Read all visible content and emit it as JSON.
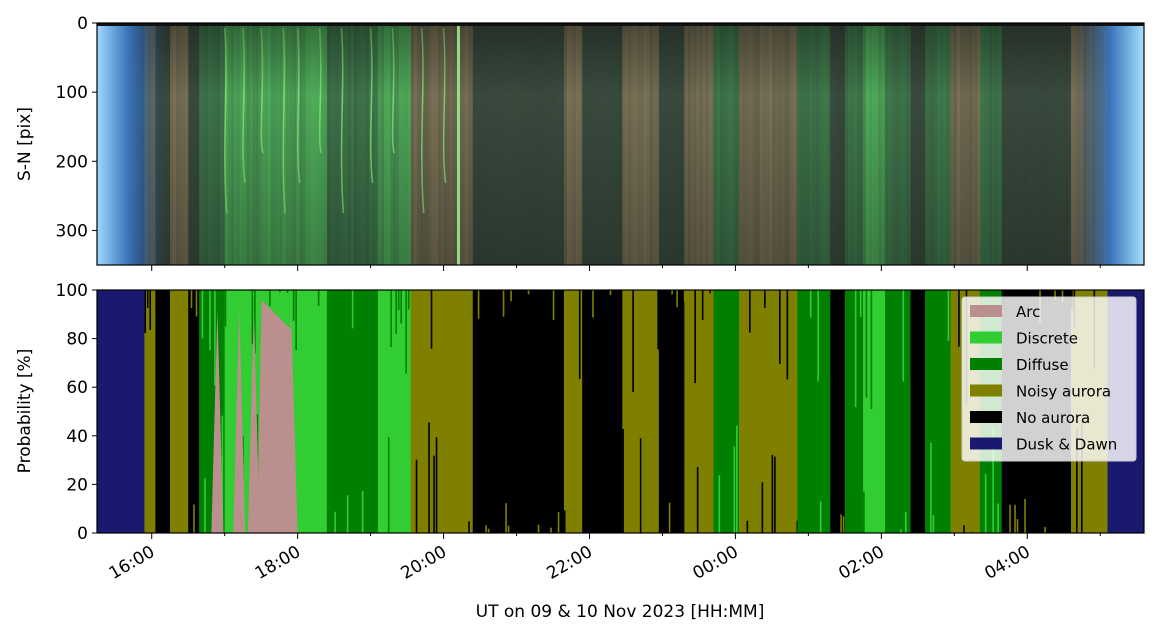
{
  "chart_data": [
    {
      "type": "heatmap",
      "title": "",
      "xlabel": "",
      "ylabel": "S-N [pix]",
      "ylim": [
        350,
        0
      ],
      "yticks": [
        "0",
        "100",
        "200",
        "300"
      ],
      "description_color_ramp": [
        "#2b4a8f",
        "#3d6b3f",
        "#6fd46a",
        "#8f7a52"
      ]
    },
    {
      "type": "area",
      "xlabel": "UT on 09 & 10 Nov 2023 [HH:MM]",
      "ylabel": "Probability [%]",
      "ylim": [
        0,
        100
      ],
      "yticks": [
        "0",
        "20",
        "40",
        "60",
        "80",
        "100"
      ],
      "xticks": [
        "16:00",
        "18:00",
        "20:00",
        "22:00",
        "00:00",
        "02:00",
        "04:00"
      ],
      "xrange_hours": [
        15.25,
        29.6
      ],
      "legend_position": "upper-right",
      "series": [
        {
          "name": "Arc",
          "color": "#bc8f8f"
        },
        {
          "name": "Discrete",
          "color": "#32cd32"
        },
        {
          "name": "Diffuse",
          "color": "#008000"
        },
        {
          "name": "Noisy aurora",
          "color": "#808000"
        },
        {
          "name": "No aurora",
          "color": "#000000"
        },
        {
          "name": "Dusk & Dawn",
          "color": "#191970"
        }
      ],
      "segments": [
        {
          "start": 15.25,
          "end": 15.9,
          "class": "Dusk & Dawn"
        },
        {
          "start": 15.9,
          "end": 16.05,
          "class": "Noisy aurora"
        },
        {
          "start": 16.05,
          "end": 16.25,
          "class": "No aurora"
        },
        {
          "start": 16.25,
          "end": 16.5,
          "class": "Noisy aurora"
        },
        {
          "start": 16.5,
          "end": 16.65,
          "class": "No aurora"
        },
        {
          "start": 16.65,
          "end": 17.0,
          "class": "Diffuse"
        },
        {
          "start": 17.0,
          "end": 17.3,
          "class": "Discrete"
        },
        {
          "start": 17.3,
          "end": 17.9,
          "class": "Discrete"
        },
        {
          "start": 17.9,
          "end": 18.4,
          "class": "Discrete"
        },
        {
          "start": 18.4,
          "end": 19.1,
          "class": "Diffuse"
        },
        {
          "start": 19.1,
          "end": 19.55,
          "class": "Discrete"
        },
        {
          "start": 19.55,
          "end": 20.4,
          "class": "Noisy aurora"
        },
        {
          "start": 20.4,
          "end": 21.65,
          "class": "No aurora"
        },
        {
          "start": 21.65,
          "end": 21.9,
          "class": "Noisy aurora"
        },
        {
          "start": 21.9,
          "end": 22.45,
          "class": "No aurora"
        },
        {
          "start": 22.45,
          "end": 22.95,
          "class": "Noisy aurora"
        },
        {
          "start": 22.95,
          "end": 23.3,
          "class": "No aurora"
        },
        {
          "start": 23.3,
          "end": 23.7,
          "class": "Noisy aurora"
        },
        {
          "start": 23.7,
          "end": 24.05,
          "class": "Diffuse"
        },
        {
          "start": 24.05,
          "end": 24.85,
          "class": "Noisy aurora"
        },
        {
          "start": 24.85,
          "end": 25.3,
          "class": "Diffuse"
        },
        {
          "start": 25.3,
          "end": 25.5,
          "class": "No aurora"
        },
        {
          "start": 25.5,
          "end": 25.75,
          "class": "Diffuse"
        },
        {
          "start": 25.75,
          "end": 26.05,
          "class": "Discrete"
        },
        {
          "start": 26.05,
          "end": 26.4,
          "class": "Diffuse"
        },
        {
          "start": 26.4,
          "end": 26.6,
          "class": "No aurora"
        },
        {
          "start": 26.6,
          "end": 26.95,
          "class": "Diffuse"
        },
        {
          "start": 26.95,
          "end": 27.35,
          "class": "Noisy aurora"
        },
        {
          "start": 27.35,
          "end": 27.65,
          "class": "Diffuse"
        },
        {
          "start": 27.65,
          "end": 28.6,
          "class": "No aurora"
        },
        {
          "start": 28.6,
          "end": 29.1,
          "class": "Noisy aurora"
        },
        {
          "start": 29.1,
          "end": 29.6,
          "class": "Dusk & Dawn"
        }
      ],
      "arc_spike_hours": [
        16.9,
        17.2,
        17.4,
        17.65,
        17.75,
        17.9
      ]
    }
  ]
}
